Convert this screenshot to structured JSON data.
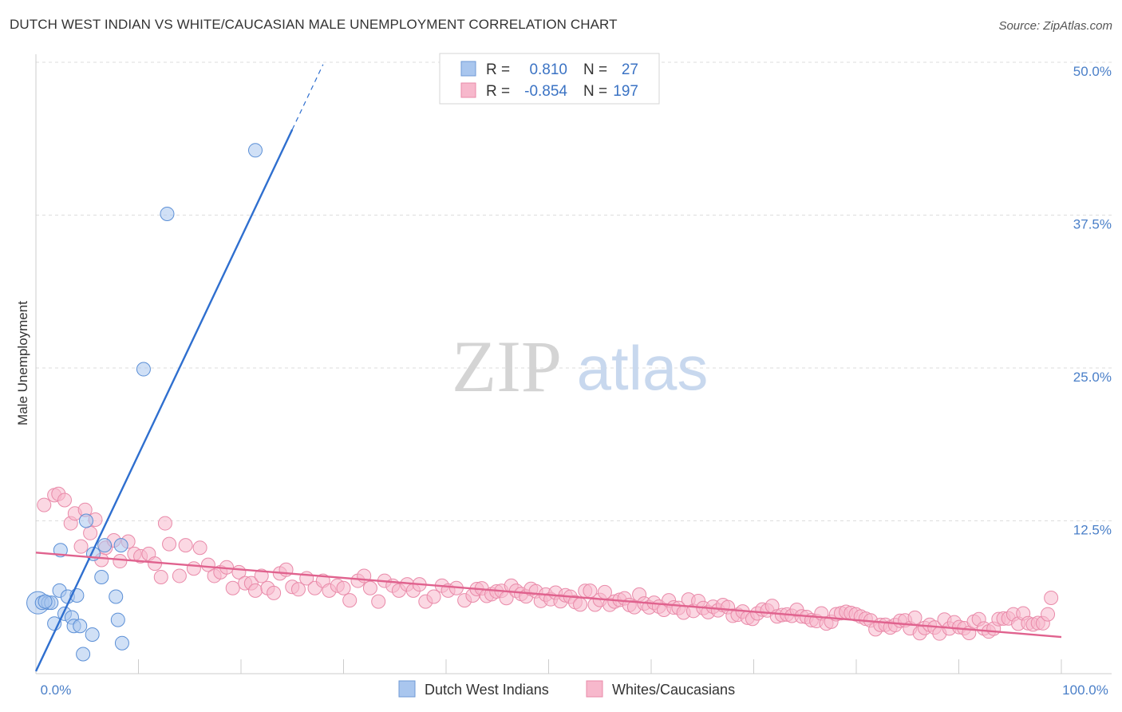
{
  "title": "DUTCH WEST INDIAN VS WHITE/CAUCASIAN MALE UNEMPLOYMENT CORRELATION CHART",
  "source": "Source: ZipAtlas.com",
  "watermark": {
    "zip": "ZIP",
    "atlas": "atlas"
  },
  "legend": {
    "rows": [
      {
        "r_label": "R =",
        "r_value": "0.810",
        "n_label": "N =",
        "n_value": "27",
        "color": "#a9c6ee",
        "stroke": "#6f9ad6"
      },
      {
        "r_label": "R =",
        "r_value": "-0.854",
        "n_label": "N =",
        "n_value": "197",
        "color": "#f7b8cc",
        "stroke": "#e98aa9"
      }
    ]
  },
  "chart_data": {
    "type": "scatter",
    "xlabel": "",
    "ylabel": "Male Unemployment",
    "xlim": [
      0,
      100
    ],
    "ylim": [
      0,
      50
    ],
    "x_tick_labels": [
      "0.0%",
      "100.0%"
    ],
    "y_ticks": [
      12.5,
      25.0,
      37.5,
      50.0
    ],
    "y_tick_labels": [
      "12.5%",
      "25.0%",
      "37.5%",
      "50.0%"
    ],
    "grid": true,
    "series": [
      {
        "name": "Dutch West Indians",
        "color": "#a9c6ee",
        "stroke": "#5b8fd6",
        "line_color": "#2f6fcf",
        "trend": {
          "x0": 0,
          "y0": 0.2,
          "x1": 25,
          "y1": 44.5,
          "dash_to_x": 28
        },
        "points": [
          [
            0.2,
            5.8
          ],
          [
            0.6,
            5.8
          ],
          [
            1.2,
            5.8
          ],
          [
            1.5,
            5.8
          ],
          [
            1.8,
            4.1
          ],
          [
            2.3,
            6.8
          ],
          [
            2.4,
            10.1
          ],
          [
            2.8,
            4.9
          ],
          [
            3.1,
            6.3
          ],
          [
            3.5,
            4.6
          ],
          [
            3.7,
            3.9
          ],
          [
            4.0,
            6.4
          ],
          [
            4.3,
            3.9
          ],
          [
            4.6,
            1.6
          ],
          [
            4.9,
            12.5
          ],
          [
            5.5,
            3.2
          ],
          [
            5.6,
            9.8
          ],
          [
            6.4,
            7.9
          ],
          [
            6.7,
            10.5
          ],
          [
            7.8,
            6.3
          ],
          [
            8.0,
            4.4
          ],
          [
            8.3,
            10.5
          ],
          [
            8.4,
            2.5
          ],
          [
            10.5,
            24.9
          ],
          [
            12.8,
            37.6
          ],
          [
            21.4,
            42.8
          ],
          [
            0.9,
            5.9
          ]
        ]
      },
      {
        "name": "Whites/Caucasians",
        "color": "#f7b8cc",
        "stroke": "#e98aa9",
        "line_color": "#e0628e",
        "trend": {
          "x0": 0,
          "y0": 9.9,
          "x1": 100,
          "y1": 3.0
        }
      }
    ]
  }
}
